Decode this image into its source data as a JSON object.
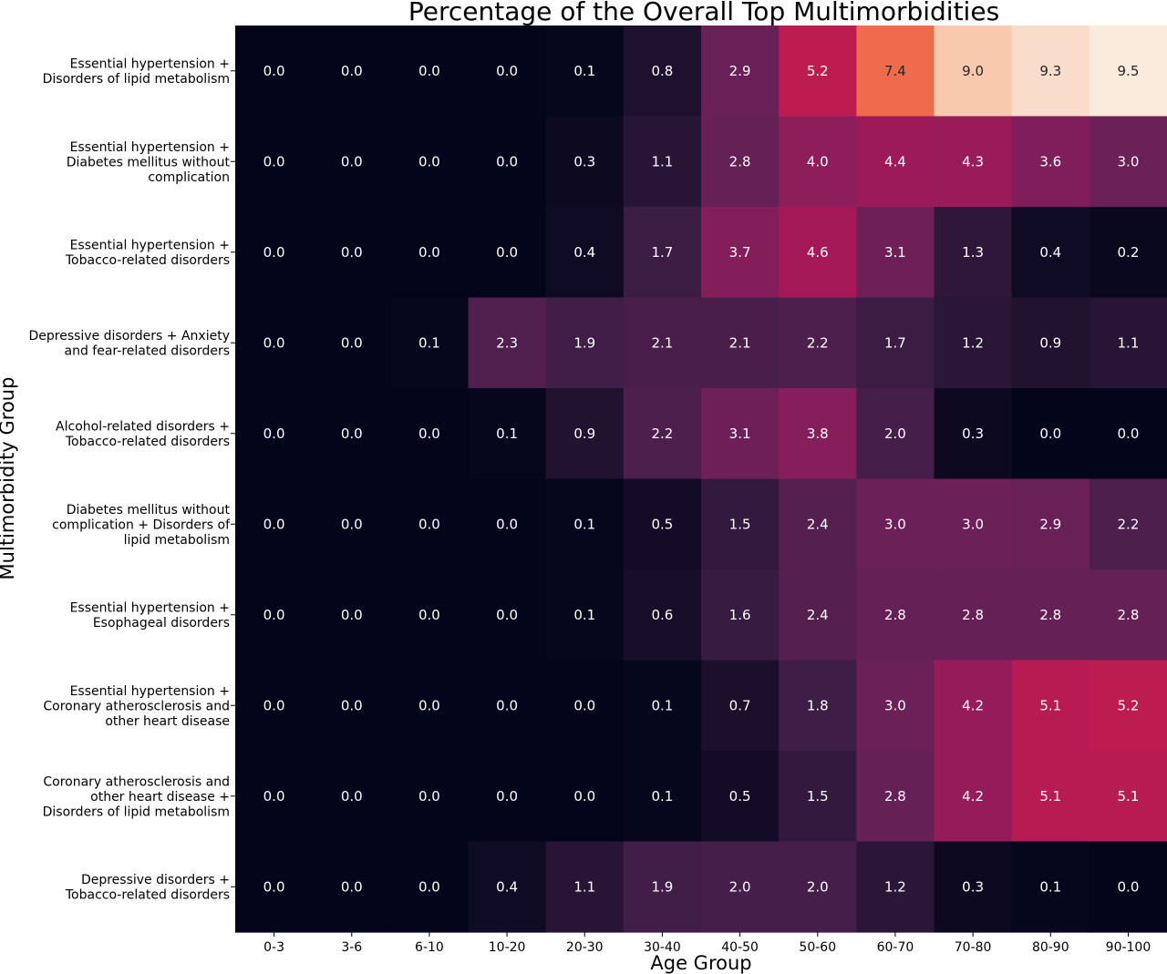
{
  "chart_data": {
    "type": "heatmap",
    "title": "Percentage of the Overall Top Multimorbidities",
    "xlabel": "Age Group",
    "ylabel": "Multimorbidity  Group",
    "colormap": "rocket",
    "vmin": 0,
    "vmax": 9.5,
    "colorbar": false,
    "x_categories": [
      "0-3",
      "3-6",
      "6-10",
      "10-20",
      "20-30",
      "30-40",
      "40-50",
      "50-60",
      "60-70",
      "70-80",
      "80-90",
      "90-100"
    ],
    "y_categories": [
      [
        "Essential hypertension +",
        "Disorders of lipid metabolism"
      ],
      [
        "Essential hypertension +",
        "Diabetes mellitus without",
        "complication"
      ],
      [
        "Essential hypertension +",
        "Tobacco-related disorders"
      ],
      [
        "Depressive disorders + Anxiety",
        "and fear-related disorders"
      ],
      [
        "Alcohol-related disorders +",
        "Tobacco-related disorders"
      ],
      [
        "Diabetes mellitus without",
        "complication + Disorders of",
        "lipid metabolism"
      ],
      [
        "Essential hypertension +",
        "Esophageal disorders"
      ],
      [
        "Essential hypertension +",
        "Coronary atherosclerosis and",
        "other heart disease"
      ],
      [
        "Coronary atherosclerosis and",
        "other heart disease +",
        "Disorders of lipid metabolism"
      ],
      [
        "Depressive disorders +",
        "Tobacco-related disorders"
      ]
    ],
    "values": [
      [
        0.0,
        0.0,
        0.0,
        0.0,
        0.1,
        0.8,
        2.9,
        5.2,
        7.4,
        9.0,
        9.3,
        9.5
      ],
      [
        0.0,
        0.0,
        0.0,
        0.0,
        0.3,
        1.1,
        2.8,
        4.0,
        4.4,
        4.3,
        3.6,
        3.0
      ],
      [
        0.0,
        0.0,
        0.0,
        0.0,
        0.4,
        1.7,
        3.7,
        4.6,
        3.1,
        1.3,
        0.4,
        0.2
      ],
      [
        0.0,
        0.0,
        0.1,
        2.3,
        1.9,
        2.1,
        2.1,
        2.2,
        1.7,
        1.2,
        0.9,
        1.1
      ],
      [
        0.0,
        0.0,
        0.0,
        0.1,
        0.9,
        2.2,
        3.1,
        3.8,
        2.0,
        0.3,
        0.0,
        0.0
      ],
      [
        0.0,
        0.0,
        0.0,
        0.0,
        0.1,
        0.5,
        1.5,
        2.4,
        3.0,
        3.0,
        2.9,
        2.2
      ],
      [
        0.0,
        0.0,
        0.0,
        0.0,
        0.1,
        0.6,
        1.6,
        2.4,
        2.8,
        2.8,
        2.8,
        2.8
      ],
      [
        0.0,
        0.0,
        0.0,
        0.0,
        0.0,
        0.1,
        0.7,
        1.8,
        3.0,
        4.2,
        5.1,
        5.2
      ],
      [
        0.0,
        0.0,
        0.0,
        0.0,
        0.0,
        0.1,
        0.5,
        1.5,
        2.8,
        4.2,
        5.1,
        5.1
      ],
      [
        0.0,
        0.0,
        0.0,
        0.4,
        1.1,
        1.9,
        2.0,
        2.0,
        1.2,
        0.3,
        0.1,
        0.0
      ]
    ]
  }
}
